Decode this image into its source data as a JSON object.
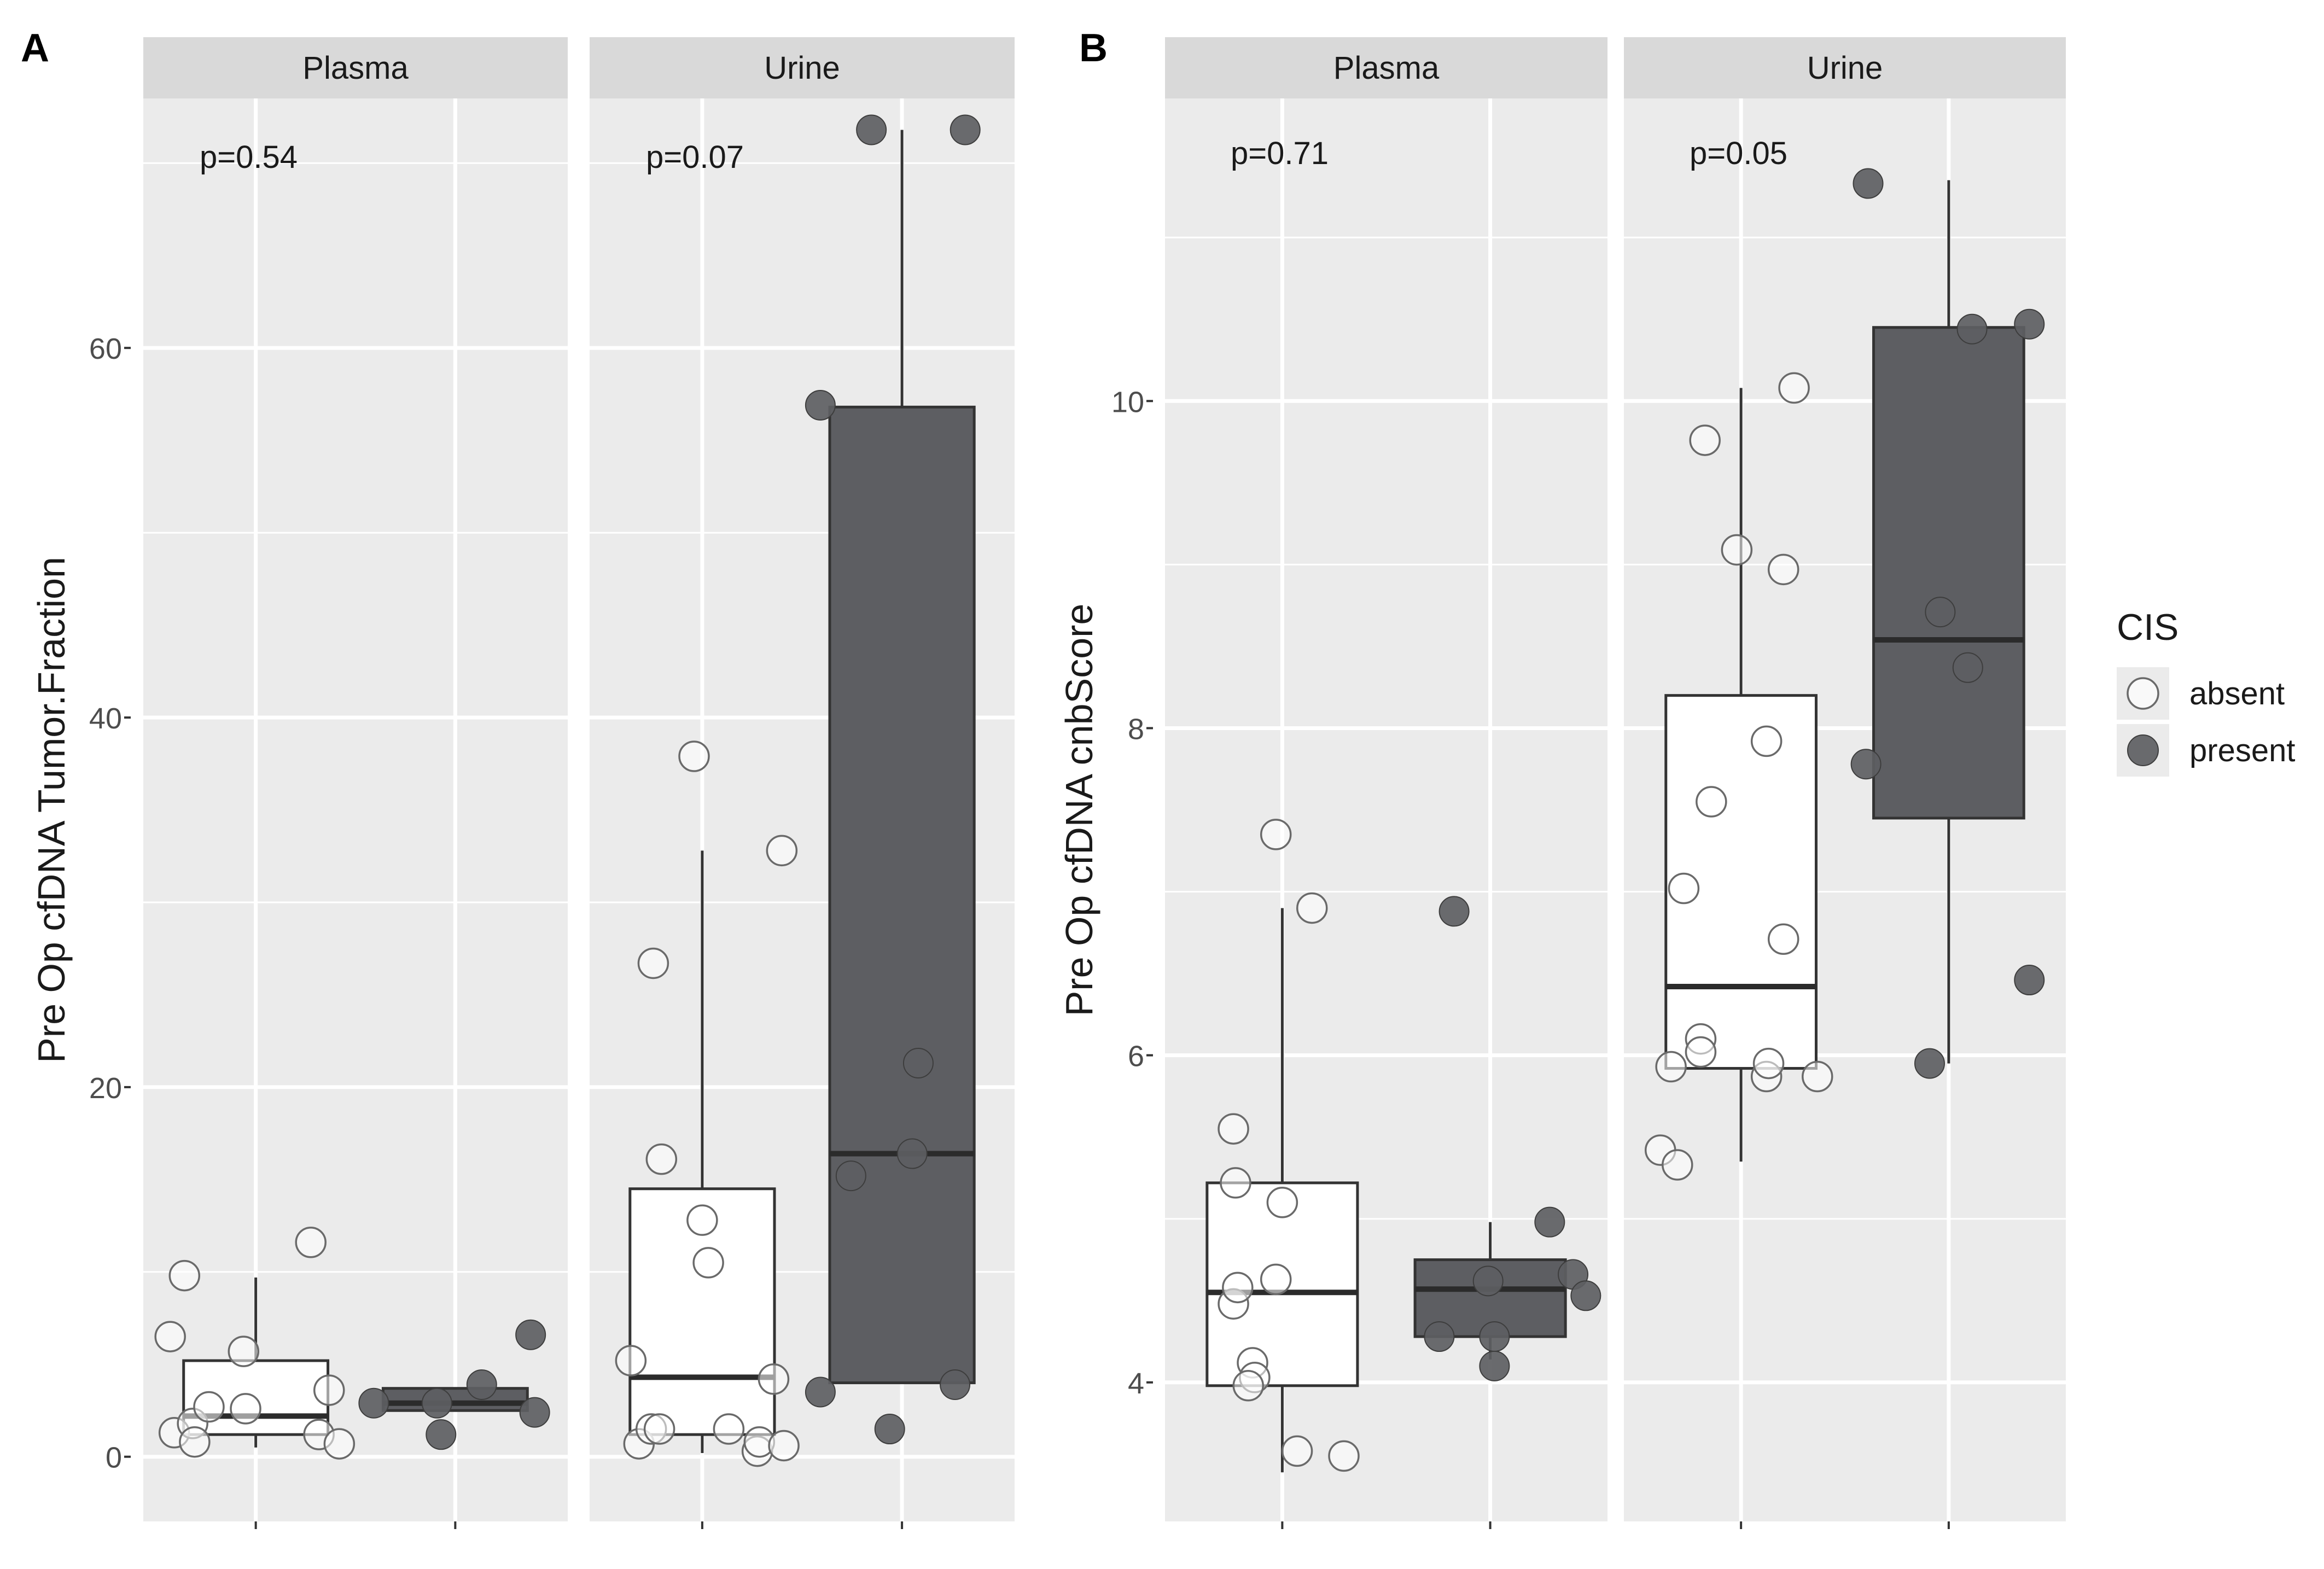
{
  "panels": [
    {
      "letter": "A",
      "ylabel": "Pre Op cfDNA Tumor.Fraction"
    },
    {
      "letter": "B",
      "ylabel": "Pre Op cfDNA cnbScore"
    }
  ],
  "legend": {
    "title": "CIS",
    "items": [
      {
        "label": "absent",
        "fill": "#ffffff"
      },
      {
        "label": "present",
        "fill": "#5d5e62"
      }
    ]
  },
  "colors": {
    "panel_bg": "#ebebeb",
    "strip_bg": "#d9d9d9",
    "grid": "#ffffff",
    "present_box": "#5d5e62",
    "absent_box": "#ffffff",
    "outline": "#333333",
    "present_point": "#5d5e62"
  },
  "chart_data": [
    {
      "type": "box",
      "panel": "A",
      "ylabel": "Pre Op cfDNA Tumor.Fraction",
      "xlabel": "",
      "ylim": [
        -3.5,
        73.5
      ],
      "yticks": [
        0,
        20,
        40,
        60
      ],
      "facets": [
        {
          "strip": "Plasma",
          "pvalue": "p=0.54",
          "groups": [
            {
              "name": "absent",
              "box": {
                "q1": 1.2,
                "median": 2.2,
                "q3": 5.2,
                "whisker_low": 0.5,
                "whisker_high": 9.7
              },
              "points": [
                [
                  -0.42,
                  6.5
                ],
                [
                  -0.4,
                  1.3
                ],
                [
                  -0.35,
                  9.8
                ],
                [
                  -0.31,
                  1.8
                ],
                [
                  -0.3,
                  0.8
                ],
                [
                  -0.23,
                  2.7
                ],
                [
                  -0.06,
                  5.7
                ],
                [
                  -0.05,
                  2.6
                ],
                [
                  0.27,
                  11.6
                ],
                [
                  0.31,
                  1.2
                ],
                [
                  0.36,
                  3.6
                ],
                [
                  0.41,
                  0.7
                ]
              ]
            },
            {
              "name": "present",
              "box": {
                "q1": 2.5,
                "median": 2.9,
                "q3": 3.7,
                "whisker_low": 2.5,
                "whisker_high": 3.7
              },
              "points": [
                [
                  -0.4,
                  2.9
                ],
                [
                  -0.09,
                  2.9
                ],
                [
                  -0.07,
                  1.2
                ],
                [
                  0.13,
                  3.9
                ],
                [
                  0.37,
                  6.6
                ],
                [
                  0.39,
                  2.4
                ]
              ]
            }
          ]
        },
        {
          "strip": "Urine",
          "pvalue": "p=0.07",
          "groups": [
            {
              "name": "absent",
              "box": {
                "q1": 1.2,
                "median": 4.3,
                "q3": 14.5,
                "whisker_low": 0.2,
                "whisker_high": 32.8
              },
              "points": [
                [
                  -0.35,
                  5.2
                ],
                [
                  -0.31,
                  0.7
                ],
                [
                  -0.25,
                  1.5
                ],
                [
                  -0.21,
                  1.5
                ],
                [
                  -0.24,
                  26.7
                ],
                [
                  -0.2,
                  16.1
                ],
                [
                  -0.04,
                  37.9
                ],
                [
                  0.0,
                  12.8
                ],
                [
                  0.03,
                  10.5
                ],
                [
                  0.13,
                  1.5
                ],
                [
                  0.27,
                  0.3
                ],
                [
                  0.28,
                  0.8
                ],
                [
                  0.35,
                  4.2
                ],
                [
                  0.39,
                  32.8
                ],
                [
                  0.4,
                  0.6
                ]
              ]
            },
            {
              "name": "present",
              "box": {
                "q1": 4.0,
                "median": 16.4,
                "q3": 56.8,
                "whisker_low": 4.0,
                "whisker_high": 71.8
              },
              "points": [
                [
                  -0.4,
                  56.9
                ],
                [
                  -0.4,
                  3.5
                ],
                [
                  -0.25,
                  15.2
                ],
                [
                  -0.15,
                  71.8
                ],
                [
                  -0.06,
                  1.5
                ],
                [
                  0.05,
                  16.4
                ],
                [
                  0.08,
                  21.3
                ],
                [
                  0.26,
                  3.9
                ],
                [
                  0.31,
                  71.8
                ]
              ]
            }
          ]
        }
      ]
    },
    {
      "type": "box",
      "panel": "B",
      "ylabel": "Pre Op cfDNA cnbScore",
      "xlabel": "",
      "ylim": [
        3.15,
        11.85
      ],
      "yticks": [
        4,
        6,
        8,
        10
      ],
      "facets": [
        {
          "strip": "Plasma",
          "pvalue": "p=0.71",
          "groups": [
            {
              "name": "absent",
              "box": {
                "q1": 3.98,
                "median": 4.55,
                "q3": 5.22,
                "whisker_low": 3.45,
                "whisker_high": 6.9
              },
              "points": [
                [
                  -0.23,
                  5.55
                ],
                [
                  -0.22,
                  5.22
                ],
                [
                  -0.23,
                  4.48
                ],
                [
                  -0.21,
                  4.58
                ],
                [
                  -0.14,
                  4.12
                ],
                [
                  -0.13,
                  4.03
                ],
                [
                  -0.16,
                  3.98
                ],
                [
                  0.0,
                  5.1
                ],
                [
                  -0.03,
                  4.63
                ],
                [
                  -0.03,
                  7.35
                ],
                [
                  0.07,
                  3.58
                ],
                [
                  0.14,
                  6.9
                ],
                [
                  0.29,
                  3.55
                ]
              ]
            },
            {
              "name": "present",
              "box": {
                "q1": 4.28,
                "median": 4.57,
                "q3": 4.75,
                "whisker_low": 4.14,
                "whisker_high": 4.98
              },
              "points": [
                [
                  -0.17,
                  6.88
                ],
                [
                  -0.24,
                  4.28
                ],
                [
                  -0.01,
                  4.62
                ],
                [
                  0.02,
                  4.28
                ],
                [
                  0.02,
                  4.1
                ],
                [
                  0.28,
                  4.98
                ],
                [
                  0.39,
                  4.66
                ],
                [
                  0.45,
                  4.53
                ]
              ]
            }
          ]
        },
        {
          "strip": "Urine",
          "pvalue": "p=0.05",
          "groups": [
            {
              "name": "absent",
              "box": {
                "q1": 5.92,
                "median": 6.42,
                "q3": 8.2,
                "whisker_low": 5.35,
                "whisker_high": 10.08
              },
              "points": [
                [
                  -0.38,
                  5.42
                ],
                [
                  -0.3,
                  5.33
                ],
                [
                  -0.33,
                  5.93
                ],
                [
                  -0.27,
                  7.02
                ],
                [
                  -0.19,
                  6.1
                ],
                [
                  -0.19,
                  6.02
                ],
                [
                  -0.17,
                  9.76
                ],
                [
                  -0.14,
                  7.55
                ],
                [
                  -0.02,
                  9.09
                ],
                [
                  0.12,
                  7.92
                ],
                [
                  0.12,
                  5.87
                ],
                [
                  0.13,
                  5.95
                ],
                [
                  0.2,
                  6.71
                ],
                [
                  0.2,
                  8.97
                ],
                [
                  0.25,
                  10.08
                ],
                [
                  0.36,
                  5.87
                ]
              ]
            },
            {
              "name": "present",
              "box": {
                "q1": 7.45,
                "median": 8.54,
                "q3": 10.45,
                "whisker_low": 5.95,
                "whisker_high": 11.35
              },
              "points": [
                [
                  -0.39,
                  7.78
                ],
                [
                  -0.38,
                  11.33
                ],
                [
                  -0.09,
                  5.95
                ],
                [
                  -0.04,
                  8.71
                ],
                [
                  0.11,
                  10.44
                ],
                [
                  0.09,
                  8.37
                ],
                [
                  0.38,
                  10.47
                ],
                [
                  0.38,
                  6.46
                ]
              ]
            }
          ]
        }
      ]
    }
  ]
}
